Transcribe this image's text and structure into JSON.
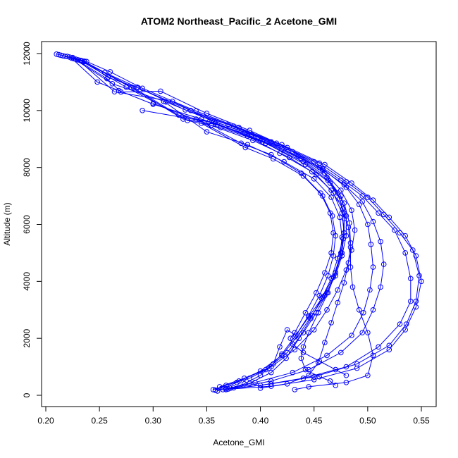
{
  "chart_data": {
    "type": "line",
    "title": "ATOM2 Northeast_Pacific_2 Acetone_GMI",
    "xlabel": "Acetone_GMI",
    "ylabel": "Altitude (m)",
    "xlim": [
      0.2,
      0.55
    ],
    "ylim": [
      0,
      12000
    ],
    "x_ticks": [
      "0.20",
      "0.25",
      "0.30",
      "0.35",
      "0.40",
      "0.45",
      "0.50",
      "0.55"
    ],
    "y_ticks": [
      "0",
      "2000",
      "4000",
      "6000",
      "8000",
      "10000",
      "12000"
    ],
    "grid": false,
    "legend": "none",
    "series_color": "#0000ff",
    "marker": "open-circle",
    "series": [
      {
        "points": [
          [
            0.21,
            11980
          ],
          [
            0.22,
            11900
          ],
          [
            0.233,
            11750
          ],
          [
            0.255,
            11330
          ],
          [
            0.285,
            10820
          ],
          [
            0.33,
            10020
          ],
          [
            0.37,
            9500
          ],
          [
            0.41,
            8900
          ],
          [
            0.45,
            8200
          ],
          [
            0.475,
            7550
          ],
          [
            0.495,
            7000
          ],
          [
            0.51,
            6400
          ],
          [
            0.525,
            5800
          ],
          [
            0.535,
            5000
          ],
          [
            0.54,
            4100
          ],
          [
            0.54,
            3300
          ],
          [
            0.53,
            2500
          ],
          [
            0.51,
            1700
          ],
          [
            0.48,
            1000
          ],
          [
            0.44,
            600
          ],
          [
            0.4,
            350
          ],
          [
            0.365,
            200
          ]
        ]
      },
      {
        "points": [
          [
            0.212,
            11960
          ],
          [
            0.222,
            11880
          ],
          [
            0.236,
            11730
          ],
          [
            0.258,
            11160
          ],
          [
            0.286,
            10800
          ],
          [
            0.335,
            10000
          ],
          [
            0.375,
            9450
          ],
          [
            0.415,
            8850
          ],
          [
            0.455,
            8150
          ],
          [
            0.48,
            7500
          ],
          [
            0.5,
            6950
          ],
          [
            0.515,
            6350
          ],
          [
            0.53,
            5700
          ],
          [
            0.542,
            5100
          ],
          [
            0.548,
            4200
          ],
          [
            0.545,
            3300
          ],
          [
            0.536,
            2500
          ],
          [
            0.52,
            1750
          ],
          [
            0.49,
            1100
          ],
          [
            0.45,
            650
          ],
          [
            0.41,
            400
          ],
          [
            0.37,
            220
          ]
        ]
      },
      {
        "points": [
          [
            0.214,
            11940
          ],
          [
            0.225,
            11860
          ],
          [
            0.238,
            11720
          ],
          [
            0.26,
            11360
          ],
          [
            0.29,
            10780
          ],
          [
            0.34,
            9980
          ],
          [
            0.38,
            9400
          ],
          [
            0.42,
            8800
          ],
          [
            0.46,
            8100
          ],
          [
            0.485,
            7450
          ],
          [
            0.505,
            6850
          ],
          [
            0.52,
            6250
          ],
          [
            0.535,
            5600
          ],
          [
            0.545,
            4900
          ],
          [
            0.55,
            4000
          ],
          [
            0.545,
            3100
          ],
          [
            0.535,
            2300
          ],
          [
            0.52,
            1600
          ],
          [
            0.49,
            950
          ],
          [
            0.45,
            550
          ],
          [
            0.41,
            320
          ],
          [
            0.358,
            180
          ]
        ]
      },
      {
        "points": [
          [
            0.216,
            11920
          ],
          [
            0.224,
            11840
          ],
          [
            0.248,
            11000
          ],
          [
            0.268,
            10700
          ],
          [
            0.3,
            10220
          ],
          [
            0.345,
            9700
          ],
          [
            0.385,
            9200
          ],
          [
            0.42,
            8650
          ],
          [
            0.455,
            8000
          ],
          [
            0.478,
            7400
          ],
          [
            0.495,
            6800
          ],
          [
            0.505,
            6100
          ],
          [
            0.512,
            5400
          ],
          [
            0.515,
            4600
          ],
          [
            0.512,
            3800
          ],
          [
            0.505,
            3000
          ],
          [
            0.495,
            2200
          ],
          [
            0.475,
            1500
          ],
          [
            0.445,
            900
          ],
          [
            0.41,
            500
          ],
          [
            0.375,
            260
          ]
        ]
      },
      {
        "points": [
          [
            0.218,
            11900
          ],
          [
            0.228,
            11800
          ],
          [
            0.257,
            11120
          ],
          [
            0.27,
            10650
          ],
          [
            0.307,
            10680
          ],
          [
            0.35,
            9900
          ],
          [
            0.39,
            9300
          ],
          [
            0.425,
            8700
          ],
          [
            0.458,
            7950
          ],
          [
            0.48,
            7300
          ],
          [
            0.492,
            6700
          ],
          [
            0.5,
            6000
          ],
          [
            0.503,
            5300
          ],
          [
            0.505,
            4500
          ],
          [
            0.502,
            3700
          ],
          [
            0.496,
            2900
          ],
          [
            0.485,
            2100
          ],
          [
            0.462,
            1400
          ],
          [
            0.43,
            800
          ],
          [
            0.395,
            450
          ],
          [
            0.368,
            230
          ]
        ]
      },
      {
        "points": [
          [
            0.226,
            11820
          ],
          [
            0.262,
            10940
          ],
          [
            0.312,
            10300
          ],
          [
            0.355,
            9640
          ],
          [
            0.392,
            9150
          ],
          [
            0.43,
            8550
          ],
          [
            0.458,
            7900
          ],
          [
            0.475,
            7200
          ],
          [
            0.485,
            6500
          ],
          [
            0.488,
            5800
          ],
          [
            0.485,
            5100
          ],
          [
            0.48,
            4400
          ],
          [
            0.472,
            3700
          ],
          [
            0.462,
            3000
          ],
          [
            0.45,
            2300
          ],
          [
            0.432,
            1600
          ],
          [
            0.41,
            1000
          ],
          [
            0.385,
            600
          ],
          [
            0.362,
            300
          ]
        ]
      },
      {
        "points": [
          [
            0.23,
            11780
          ],
          [
            0.264,
            10660
          ],
          [
            0.318,
            10320
          ],
          [
            0.357,
            9620
          ],
          [
            0.398,
            9050
          ],
          [
            0.435,
            8400
          ],
          [
            0.46,
            7800
          ],
          [
            0.472,
            7100
          ],
          [
            0.478,
            6400
          ],
          [
            0.478,
            5700
          ],
          [
            0.475,
            5000
          ],
          [
            0.47,
            4300
          ],
          [
            0.462,
            3600
          ],
          [
            0.452,
            2900
          ],
          [
            0.44,
            2200
          ],
          [
            0.425,
            1500
          ],
          [
            0.405,
            900
          ],
          [
            0.38,
            500
          ],
          [
            0.356,
            200
          ]
        ]
      },
      {
        "points": [
          [
            0.232,
            11760
          ],
          [
            0.275,
            10820
          ],
          [
            0.324,
            9840
          ],
          [
            0.358,
            9560
          ],
          [
            0.4,
            8950
          ],
          [
            0.438,
            8300
          ],
          [
            0.462,
            7650
          ],
          [
            0.475,
            7000
          ],
          [
            0.48,
            6300
          ],
          [
            0.48,
            5600
          ],
          [
            0.476,
            4900
          ],
          [
            0.47,
            4200
          ],
          [
            0.46,
            3500
          ],
          [
            0.448,
            2800
          ],
          [
            0.435,
            2100
          ],
          [
            0.42,
            1400
          ],
          [
            0.4,
            850
          ],
          [
            0.378,
            450
          ],
          [
            0.36,
            150
          ]
        ]
      },
      {
        "points": [
          [
            0.234,
            11740
          ],
          [
            0.28,
            10800
          ],
          [
            0.328,
            9700
          ],
          [
            0.36,
            9500
          ],
          [
            0.402,
            8900
          ],
          [
            0.44,
            8200
          ],
          [
            0.463,
            7550
          ],
          [
            0.474,
            6900
          ],
          [
            0.478,
            6200
          ],
          [
            0.477,
            5500
          ],
          [
            0.472,
            4800
          ],
          [
            0.466,
            4100
          ],
          [
            0.457,
            3400
          ],
          [
            0.447,
            2700
          ],
          [
            0.436,
            2000
          ],
          [
            0.424,
            1300
          ],
          [
            0.41,
            800
          ],
          [
            0.39,
            420
          ],
          [
            0.368,
            200
          ]
        ]
      },
      {
        "points": [
          [
            0.236,
            11720
          ],
          [
            0.282,
            10790
          ],
          [
            0.332,
            9650
          ],
          [
            0.363,
            9400
          ],
          [
            0.405,
            8850
          ],
          [
            0.442,
            8100
          ],
          [
            0.465,
            7450
          ],
          [
            0.478,
            6750
          ],
          [
            0.483,
            6050
          ],
          [
            0.484,
            5350
          ],
          [
            0.482,
            4650
          ],
          [
            0.478,
            3950
          ],
          [
            0.472,
            3250
          ],
          [
            0.466,
            2550
          ],
          [
            0.46,
            1850
          ],
          [
            0.454,
            1150
          ],
          [
            0.445,
            700
          ],
          [
            0.425,
            400
          ],
          [
            0.4,
            250
          ]
        ]
      },
      {
        "points": [
          [
            0.29,
            10000
          ],
          [
            0.352,
            9600
          ],
          [
            0.388,
            9100
          ],
          [
            0.418,
            8500
          ],
          [
            0.448,
            7850
          ],
          [
            0.466,
            7200
          ],
          [
            0.477,
            6550
          ],
          [
            0.482,
            5900
          ],
          [
            0.484,
            5200
          ],
          [
            0.484,
            4500
          ],
          [
            0.486,
            3800
          ],
          [
            0.492,
            3000
          ],
          [
            0.5,
            2200
          ],
          [
            0.505,
            1400
          ],
          [
            0.5,
            700
          ],
          [
            0.48,
            450
          ],
          [
            0.445,
            300
          ],
          [
            0.432,
            200
          ]
        ]
      },
      {
        "points": [
          [
            0.3,
            10250
          ],
          [
            0.354,
            9480
          ],
          [
            0.393,
            8950
          ],
          [
            0.427,
            8350
          ],
          [
            0.452,
            7750
          ],
          [
            0.468,
            7100
          ],
          [
            0.476,
            6400
          ],
          [
            0.478,
            5700
          ],
          [
            0.476,
            5000
          ],
          [
            0.47,
            4300
          ],
          [
            0.463,
            3600
          ],
          [
            0.454,
            2900
          ],
          [
            0.445,
            2200
          ],
          [
            0.44,
            1700
          ],
          [
            0.438,
            1300
          ],
          [
            0.442,
            900
          ],
          [
            0.455,
            650
          ],
          [
            0.465,
            500
          ],
          [
            0.47,
            350
          ]
        ]
      },
      {
        "points": [
          [
            0.31,
            10320
          ],
          [
            0.35,
            9250
          ],
          [
            0.388,
            8800
          ],
          [
            0.422,
            8200
          ],
          [
            0.45,
            7600
          ],
          [
            0.466,
            6950
          ],
          [
            0.474,
            6250
          ],
          [
            0.476,
            5550
          ],
          [
            0.474,
            4850
          ],
          [
            0.468,
            4150
          ],
          [
            0.458,
            3450
          ],
          [
            0.445,
            2750
          ],
          [
            0.432,
            2050
          ],
          [
            0.42,
            1450
          ],
          [
            0.408,
            950
          ],
          [
            0.39,
            600
          ],
          [
            0.368,
            350
          ],
          [
            0.358,
            180
          ]
        ]
      },
      {
        "points": [
          [
            0.345,
            9550
          ],
          [
            0.386,
            8700
          ],
          [
            0.412,
            8300
          ],
          [
            0.44,
            7700
          ],
          [
            0.458,
            7000
          ],
          [
            0.467,
            6300
          ],
          [
            0.47,
            5600
          ],
          [
            0.468,
            4900
          ],
          [
            0.463,
            4200
          ],
          [
            0.455,
            3500
          ],
          [
            0.445,
            2800
          ],
          [
            0.433,
            2100
          ],
          [
            0.425,
            2300
          ],
          [
            0.418,
            1700
          ],
          [
            0.412,
            1100
          ],
          [
            0.4,
            700
          ],
          [
            0.385,
            400
          ],
          [
            0.372,
            250
          ]
        ]
      },
      {
        "points": [
          [
            0.34,
            9700
          ],
          [
            0.382,
            8850
          ],
          [
            0.41,
            8450
          ],
          [
            0.438,
            7800
          ],
          [
            0.456,
            7100
          ],
          [
            0.465,
            6400
          ],
          [
            0.468,
            5700
          ],
          [
            0.466,
            5000
          ],
          [
            0.46,
            4300
          ],
          [
            0.452,
            3600
          ],
          [
            0.442,
            2900
          ],
          [
            0.432,
            2200
          ],
          [
            0.428,
            2000
          ],
          [
            0.43,
            1800
          ],
          [
            0.44,
            1500
          ],
          [
            0.455,
            1200
          ],
          [
            0.47,
            900
          ],
          [
            0.48,
            700
          ]
        ]
      }
    ]
  }
}
